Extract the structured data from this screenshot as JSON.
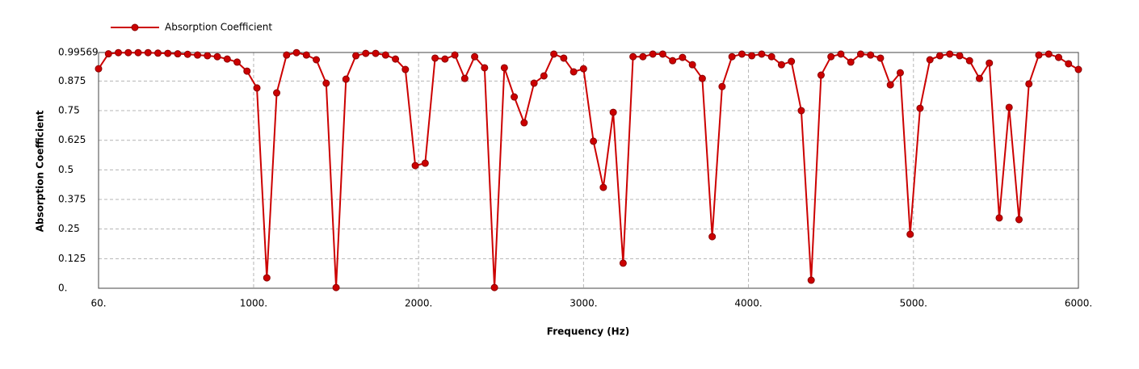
{
  "chart_data": {
    "type": "line",
    "x_label": "Frequency (Hz)",
    "y_label": "Absorption Coefficient",
    "x": [
      60,
      120,
      180,
      240,
      300,
      360,
      420,
      480,
      540,
      600,
      660,
      720,
      780,
      840,
      900,
      960,
      1020,
      1080,
      1140,
      1200,
      1260,
      1320,
      1380,
      1440,
      1500,
      1560,
      1620,
      1680,
      1740,
      1800,
      1860,
      1920,
      1980,
      2040,
      2100,
      2160,
      2220,
      2280,
      2340,
      2400,
      2460,
      2520,
      2580,
      2640,
      2700,
      2760,
      2820,
      2880,
      2940,
      3000,
      3060,
      3120,
      3180,
      3240,
      3300,
      3360,
      3420,
      3480,
      3540,
      3600,
      3660,
      3720,
      3780,
      3840,
      3900,
      3960,
      4020,
      4080,
      4140,
      4200,
      4260,
      4320,
      4380,
      4440,
      4500,
      4560,
      4620,
      4680,
      4740,
      4800,
      4860,
      4920,
      4980,
      5040,
      5100,
      5160,
      5220,
      5280,
      5340,
      5400,
      5460,
      5520,
      5580,
      5640,
      5700,
      5760,
      5820,
      5880,
      5940,
      6000
    ],
    "series": [
      {
        "name": "Absorption Coefficient",
        "color": "#cc0000",
        "marker_color": "#8b0000",
        "values": [
          0.927,
          0.99,
          0.995,
          0.995,
          0.995,
          0.995,
          0.993,
          0.992,
          0.99,
          0.988,
          0.985,
          0.982,
          0.978,
          0.968,
          0.955,
          0.917,
          0.846,
          0.044,
          0.825,
          0.985,
          0.995,
          0.985,
          0.965,
          0.866,
          0.003,
          0.883,
          0.982,
          0.992,
          0.992,
          0.985,
          0.968,
          0.924,
          0.518,
          0.528,
          0.972,
          0.968,
          0.985,
          0.886,
          0.978,
          0.931,
          0.003,
          0.931,
          0.808,
          0.699,
          0.866,
          0.897,
          0.989,
          0.972,
          0.914,
          0.927,
          0.621,
          0.426,
          0.743,
          0.106,
          0.978,
          0.978,
          0.989,
          0.989,
          0.961,
          0.975,
          0.944,
          0.886,
          0.218,
          0.852,
          0.978,
          0.989,
          0.982,
          0.989,
          0.978,
          0.944,
          0.958,
          0.75,
          0.034,
          0.9,
          0.978,
          0.989,
          0.955,
          0.989,
          0.985,
          0.972,
          0.859,
          0.91,
          0.228,
          0.76,
          0.965,
          0.982,
          0.989,
          0.982,
          0.961,
          0.886,
          0.951,
          0.297,
          0.764,
          0.29,
          0.863,
          0.985,
          0.989,
          0.975,
          0.948,
          0.924
        ]
      }
    ],
    "xlim": [
      60,
      6000
    ],
    "xticks": [
      {
        "value": 60,
        "label": "60."
      },
      {
        "value": 1000,
        "label": "1000."
      },
      {
        "value": 2000,
        "label": "2000."
      },
      {
        "value": 3000,
        "label": "3000."
      },
      {
        "value": 4000,
        "label": "4000."
      },
      {
        "value": 5000,
        "label": "5000."
      },
      {
        "value": 6000,
        "label": "6000."
      }
    ],
    "ylim": [
      0,
      0.99569
    ],
    "yticks": [
      {
        "value": 0,
        "label": "0."
      },
      0.125,
      0.25,
      0.375,
      0.5,
      0.625,
      0.75,
      0.875,
      0.99569
    ],
    "grid": true,
    "legend": "top-left"
  }
}
